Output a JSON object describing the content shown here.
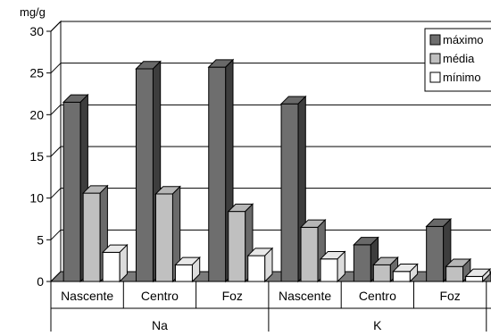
{
  "chart_data": {
    "type": "bar",
    "ylabel": "mg/g",
    "ylim": [
      0,
      30
    ],
    "yticks": [
      0,
      5,
      10,
      15,
      20,
      25,
      30
    ],
    "categories": [
      "Nascente",
      "Centro",
      "Foz",
      "Nascente",
      "Centro",
      "Foz"
    ],
    "groups": [
      {
        "label": "Na",
        "span": [
          0,
          2
        ]
      },
      {
        "label": "K",
        "span": [
          3,
          5
        ]
      }
    ],
    "series": [
      {
        "name": "máximo",
        "color": "#6e6e6e",
        "values": [
          21.5,
          25.5,
          25.7,
          21.3,
          4.4,
          6.6
        ]
      },
      {
        "name": "média",
        "color": "#c0c0c0",
        "values": [
          10.6,
          10.5,
          8.4,
          6.5,
          2.0,
          1.8
        ]
      },
      {
        "name": "mínimo",
        "color": "#ffffff",
        "values": [
          3.5,
          2.0,
          3.1,
          2.7,
          1.2,
          0.6
        ]
      }
    ],
    "legend": "top-right",
    "grid": true
  }
}
